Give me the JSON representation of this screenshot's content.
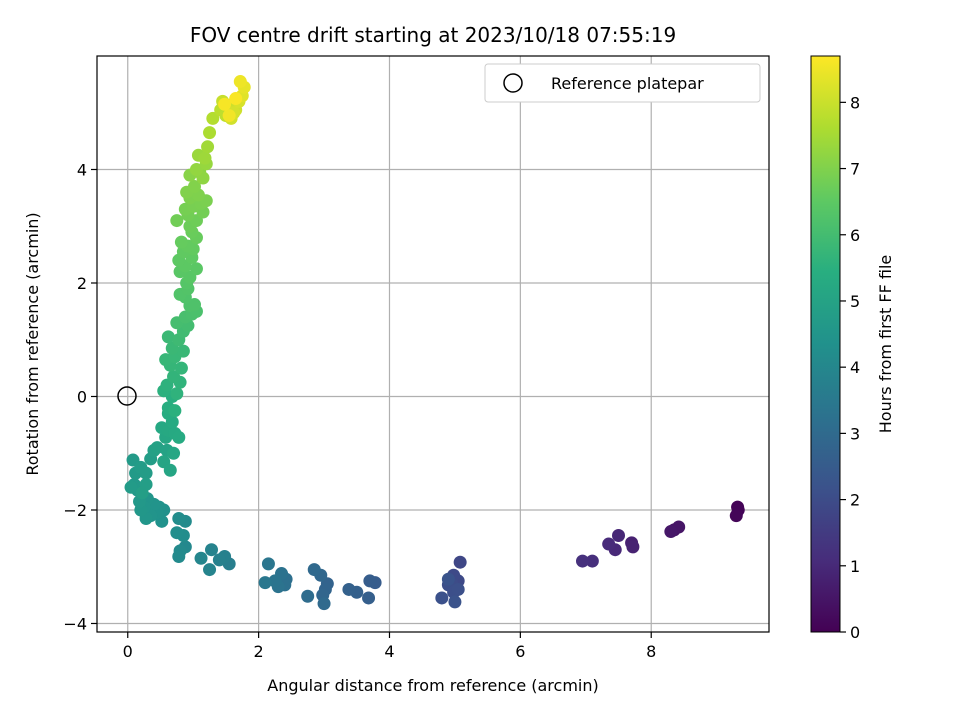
{
  "chart_data": {
    "type": "scatter",
    "title": "FOV centre drift starting at 2023/10/18 07:55:19",
    "xlabel": "Angular distance from reference (arcmin)",
    "ylabel": "Rotation from reference (arcmin)",
    "xlim": [
      -0.47,
      9.8
    ],
    "ylim": [
      -4.15,
      6.0
    ],
    "xticks": [
      0,
      2,
      4,
      6,
      8
    ],
    "yticks": [
      -4,
      -2,
      0,
      2,
      4
    ],
    "xtick_labels": [
      "0",
      "2",
      "4",
      "6",
      "8"
    ],
    "ytick_labels": [
      "−4",
      "−2",
      "0",
      "2",
      "4"
    ],
    "grid": true,
    "colormap": "viridis",
    "colorbar": {
      "label": "Hours from first FF file",
      "range": [
        0,
        8.7
      ],
      "ticks": [
        0,
        1,
        2,
        3,
        4,
        5,
        6,
        7,
        8
      ],
      "tick_labels": [
        "0",
        "1",
        "2",
        "3",
        "4",
        "5",
        "6",
        "7",
        "8"
      ]
    },
    "legend": {
      "position": "top-right",
      "entries": [
        "Reference platepar"
      ]
    },
    "reference_point": {
      "x": 0,
      "y": 0
    },
    "points": [
      [
        9.32,
        -1.95,
        0.05
      ],
      [
        9.33,
        -2.0,
        0.08
      ],
      [
        9.3,
        -2.1,
        0.12
      ],
      [
        8.35,
        -2.35,
        0.45
      ],
      [
        8.42,
        -2.3,
        0.5
      ],
      [
        8.3,
        -2.38,
        0.55
      ],
      [
        7.7,
        -2.58,
        0.8
      ],
      [
        7.72,
        -2.65,
        0.85
      ],
      [
        7.5,
        -2.45,
        0.95
      ],
      [
        7.45,
        -2.7,
        1.0
      ],
      [
        7.35,
        -2.6,
        1.05
      ],
      [
        7.1,
        -2.9,
        1.15
      ],
      [
        6.95,
        -2.9,
        1.2
      ],
      [
        5.08,
        -2.92,
        1.85
      ],
      [
        5.05,
        -3.25,
        1.9
      ],
      [
        4.98,
        -3.15,
        1.95
      ],
      [
        4.95,
        -3.3,
        2.0
      ],
      [
        4.9,
        -3.32,
        2.05
      ],
      [
        4.98,
        -3.45,
        2.1
      ],
      [
        5.05,
        -3.4,
        2.12
      ],
      [
        4.8,
        -3.55,
        2.15
      ],
      [
        5.0,
        -3.62,
        2.2
      ],
      [
        4.9,
        -3.22,
        2.22
      ],
      [
        3.78,
        -3.28,
        2.5
      ],
      [
        3.7,
        -3.25,
        2.55
      ],
      [
        3.68,
        -3.55,
        2.6
      ],
      [
        3.5,
        -3.45,
        2.65
      ],
      [
        3.38,
        -3.4,
        2.7
      ],
      [
        3.05,
        -3.3,
        2.75
      ],
      [
        3.02,
        -3.4,
        2.8
      ],
      [
        2.98,
        -3.5,
        2.85
      ],
      [
        2.95,
        -3.15,
        2.9
      ],
      [
        2.85,
        -3.05,
        2.95
      ],
      [
        3.0,
        -3.65,
        3.0
      ],
      [
        2.75,
        -3.52,
        3.05
      ],
      [
        2.42,
        -3.22,
        3.15
      ],
      [
        2.4,
        -3.32,
        3.2
      ],
      [
        2.35,
        -3.12,
        3.25
      ],
      [
        2.3,
        -3.35,
        3.3
      ],
      [
        2.25,
        -3.25,
        3.35
      ],
      [
        2.15,
        -2.95,
        3.4
      ],
      [
        2.1,
        -3.28,
        3.45
      ],
      [
        1.55,
        -2.95,
        3.7
      ],
      [
        1.48,
        -2.82,
        3.75
      ],
      [
        1.4,
        -2.88,
        3.8
      ],
      [
        1.28,
        -2.7,
        3.85
      ],
      [
        1.25,
        -3.05,
        3.9
      ],
      [
        1.12,
        -2.85,
        3.95
      ],
      [
        0.88,
        -2.65,
        4.05
      ],
      [
        0.8,
        -2.72,
        4.1
      ],
      [
        0.78,
        -2.82,
        4.12
      ],
      [
        0.88,
        -2.2,
        4.15
      ],
      [
        0.78,
        -2.15,
        4.2
      ],
      [
        0.85,
        -2.45,
        4.22
      ],
      [
        0.75,
        -2.4,
        4.25
      ],
      [
        0.55,
        -2.0,
        4.35
      ],
      [
        0.52,
        -2.2,
        4.38
      ],
      [
        0.48,
        -1.95,
        4.4
      ],
      [
        0.45,
        -2.05,
        4.42
      ],
      [
        0.4,
        -1.9,
        4.45
      ],
      [
        0.35,
        -2.1,
        4.48
      ],
      [
        0.3,
        -1.8,
        4.5
      ],
      [
        0.28,
        -2.15,
        4.52
      ],
      [
        0.25,
        -1.95,
        4.55
      ],
      [
        0.2,
        -2.0,
        4.58
      ],
      [
        0.18,
        -1.85,
        4.6
      ],
      [
        0.15,
        -1.65,
        4.62
      ],
      [
        0.1,
        -1.55,
        4.65
      ],
      [
        0.12,
        -1.35,
        4.68
      ],
      [
        0.08,
        -1.12,
        4.7
      ],
      [
        0.05,
        -1.6,
        4.72
      ],
      [
        0.2,
        -1.25,
        4.75
      ],
      [
        0.28,
        -1.35,
        4.78
      ],
      [
        0.35,
        -1.1,
        4.8
      ],
      [
        0.28,
        -1.55,
        4.82
      ],
      [
        0.22,
        -1.7,
        4.85
      ],
      [
        0.4,
        -0.95,
        4.9
      ],
      [
        0.45,
        -0.9,
        4.95
      ],
      [
        0.6,
        -0.95,
        5.0
      ],
      [
        0.55,
        -1.15,
        5.05
      ],
      [
        0.65,
        -1.3,
        5.1
      ],
      [
        0.7,
        -1.0,
        5.12
      ],
      [
        0.58,
        -0.72,
        5.15
      ],
      [
        0.52,
        -0.55,
        5.2
      ],
      [
        0.62,
        -0.6,
        5.22
      ],
      [
        0.72,
        -0.65,
        5.25
      ],
      [
        0.78,
        -0.72,
        5.28
      ],
      [
        0.68,
        -0.45,
        5.3
      ],
      [
        0.62,
        -0.3,
        5.35
      ],
      [
        0.62,
        -0.2,
        5.4
      ],
      [
        0.68,
        0.0,
        5.45
      ],
      [
        0.72,
        -0.25,
        5.5
      ],
      [
        0.55,
        0.1,
        5.52
      ],
      [
        0.6,
        0.2,
        5.55
      ],
      [
        0.75,
        0.05,
        5.6
      ],
      [
        0.8,
        0.25,
        5.62
      ],
      [
        0.7,
        0.35,
        5.65
      ],
      [
        0.82,
        0.5,
        5.7
      ],
      [
        0.65,
        0.55,
        5.72
      ],
      [
        0.58,
        0.65,
        5.75
      ],
      [
        0.72,
        0.7,
        5.78
      ],
      [
        0.85,
        0.8,
        5.8
      ],
      [
        0.68,
        0.85,
        5.82
      ],
      [
        0.62,
        1.05,
        5.85
      ],
      [
        0.78,
        1.0,
        5.9
      ],
      [
        0.85,
        1.15,
        5.95
      ],
      [
        0.92,
        1.25,
        6.0
      ],
      [
        0.75,
        1.3,
        6.05
      ],
      [
        0.88,
        1.4,
        6.1
      ],
      [
        0.98,
        1.45,
        6.12
      ],
      [
        1.05,
        1.5,
        6.15
      ],
      [
        0.95,
        1.6,
        6.2
      ],
      [
        1.02,
        1.62,
        6.22
      ],
      [
        0.88,
        1.75,
        6.25
      ],
      [
        0.8,
        1.8,
        6.28
      ],
      [
        0.92,
        1.9,
        6.3
      ],
      [
        0.9,
        2.0,
        6.35
      ],
      [
        0.95,
        2.1,
        6.4
      ],
      [
        0.8,
        2.2,
        6.42
      ],
      [
        1.05,
        2.25,
        6.45
      ],
      [
        0.88,
        2.3,
        6.48
      ],
      [
        0.78,
        2.4,
        6.5
      ],
      [
        0.98,
        2.45,
        6.52
      ],
      [
        0.85,
        2.55,
        6.55
      ],
      [
        1.0,
        2.6,
        6.58
      ],
      [
        0.92,
        2.65,
        6.6
      ],
      [
        0.82,
        2.72,
        6.62
      ],
      [
        1.05,
        2.8,
        6.65
      ],
      [
        0.98,
        2.9,
        6.68
      ],
      [
        0.95,
        3.0,
        6.72
      ],
      [
        1.05,
        3.1,
        6.75
      ],
      [
        0.75,
        3.1,
        6.78
      ],
      [
        0.92,
        3.2,
        6.8
      ],
      [
        1.15,
        3.25,
        6.82
      ],
      [
        0.88,
        3.3,
        6.85
      ],
      [
        1.0,
        3.35,
        6.88
      ],
      [
        1.12,
        3.4,
        6.9
      ],
      [
        1.2,
        3.45,
        6.92
      ],
      [
        0.95,
        3.5,
        6.95
      ],
      [
        1.08,
        3.55,
        6.98
      ],
      [
        0.9,
        3.6,
        7.0
      ],
      [
        1.02,
        3.7,
        7.02
      ],
      [
        0.95,
        3.9,
        7.1
      ],
      [
        1.1,
        3.95,
        7.15
      ],
      [
        1.15,
        3.85,
        7.2
      ],
      [
        1.05,
        4.0,
        7.25
      ],
      [
        1.2,
        4.1,
        7.3
      ],
      [
        1.08,
        4.25,
        7.35
      ],
      [
        1.18,
        4.2,
        7.4
      ],
      [
        1.22,
        4.4,
        7.45
      ],
      [
        1.25,
        4.65,
        7.6
      ],
      [
        1.3,
        4.9,
        7.7
      ],
      [
        1.42,
        5.05,
        7.8
      ],
      [
        1.5,
        4.95,
        7.85
      ],
      [
        1.55,
        5.1,
        7.9
      ],
      [
        1.45,
        5.2,
        7.95
      ],
      [
        1.6,
        5.15,
        8.0
      ],
      [
        1.65,
        5.05,
        8.05
      ],
      [
        1.58,
        4.9,
        8.1
      ],
      [
        1.62,
        5.0,
        8.15
      ],
      [
        1.7,
        5.2,
        8.2
      ],
      [
        1.75,
        5.3,
        8.3
      ],
      [
        1.78,
        5.45,
        8.4
      ],
      [
        1.72,
        5.55,
        8.5
      ],
      [
        1.55,
        4.95,
        8.55
      ],
      [
        1.48,
        5.15,
        8.6
      ],
      [
        1.65,
        5.25,
        8.65
      ]
    ]
  }
}
